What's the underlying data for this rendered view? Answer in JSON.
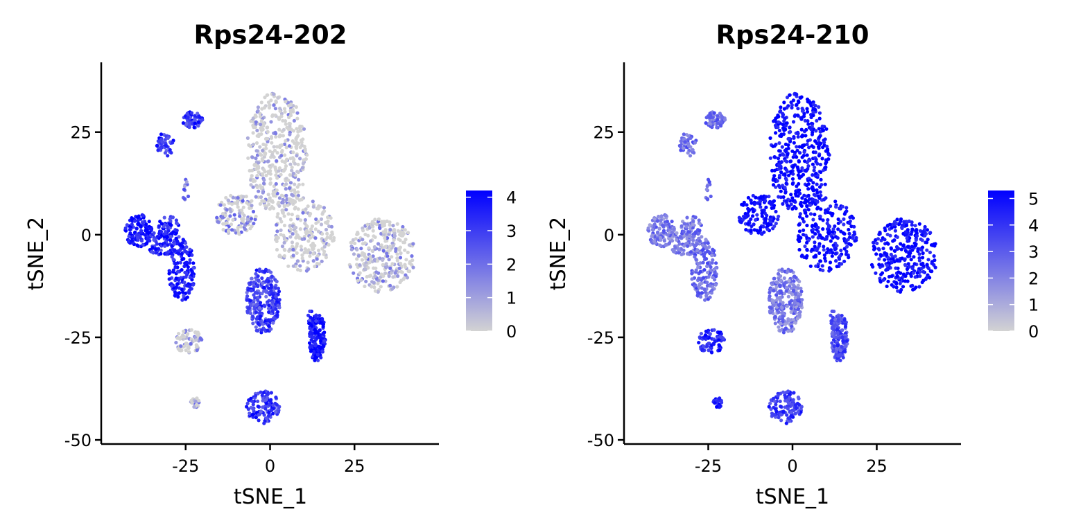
{
  "chart_data": [
    {
      "type": "scatter",
      "title": "Rps24-202",
      "xlabel": "tSNE_1",
      "ylabel": "tSNE_2",
      "xlim": [
        -50,
        50
      ],
      "ylim": [
        -51,
        42
      ],
      "xticks": [
        -25,
        0,
        25
      ],
      "yticks": [
        25,
        0,
        -25,
        -50
      ],
      "xtick_labels": [
        "-25",
        "0",
        "25"
      ],
      "ytick_labels": [
        "25",
        "0",
        "-25",
        "-50"
      ],
      "grid": false,
      "legend": "right",
      "colorscale": {
        "low": "#d3d3d3",
        "high": "#0000ff",
        "min": 0,
        "max": 4.2
      },
      "legend_ticks": [
        0,
        1,
        2,
        3,
        4
      ],
      "legend_tick_labels": [
        "0",
        "1",
        "2",
        "3",
        "4"
      ],
      "clusters": [
        {
          "cx": 2,
          "cy": 20,
          "rx": 9,
          "ry": 15,
          "n": 420,
          "level": 0.8
        },
        {
          "cx": 10,
          "cy": 0,
          "rx": 9,
          "ry": 9,
          "n": 220,
          "level": 0.8
        },
        {
          "cx": -10,
          "cy": 5,
          "rx": 6,
          "ry": 5,
          "n": 120,
          "level": 1.3
        },
        {
          "cx": 33,
          "cy": -5,
          "rx": 10,
          "ry": 9,
          "n": 300,
          "level": 1.0
        },
        {
          "cx": -39,
          "cy": 1,
          "rx": 4,
          "ry": 4,
          "n": 110,
          "level": 3.9
        },
        {
          "cx": -31,
          "cy": -2,
          "rx": 6,
          "ry": 3,
          "n": 90,
          "level": 3.5
        },
        {
          "cx": -26,
          "cy": -9,
          "rx": 4,
          "ry": 7,
          "n": 140,
          "level": 3.8
        },
        {
          "cx": -30,
          "cy": 2,
          "rx": 3,
          "ry": 2.5,
          "n": 45,
          "level": 3.5
        },
        {
          "cx": -23,
          "cy": 28,
          "rx": 3,
          "ry": 2,
          "n": 60,
          "level": 3.2
        },
        {
          "cx": -31,
          "cy": 22,
          "rx": 2.5,
          "ry": 3,
          "n": 45,
          "level": 3.2
        },
        {
          "cx": -25,
          "cy": 11,
          "rx": 1,
          "ry": 3,
          "n": 12,
          "level": 1.8
        },
        {
          "cx": -2,
          "cy": -16,
          "rx": 5,
          "ry": 8,
          "n": 260,
          "level": 2.9
        },
        {
          "cx": 14,
          "cy": -25,
          "rx": 2.5,
          "ry": 6,
          "n": 150,
          "level": 3.9
        },
        {
          "cx": -24,
          "cy": -26,
          "rx": 4,
          "ry": 3,
          "n": 70,
          "level": 1.0
        },
        {
          "cx": -22,
          "cy": -41,
          "rx": 1.5,
          "ry": 1.2,
          "n": 20,
          "level": 1.3
        },
        {
          "cx": -2,
          "cy": -42,
          "rx": 5,
          "ry": 4,
          "n": 120,
          "level": 3.2
        },
        {
          "cx": 12,
          "cy": -20,
          "rx": 1,
          "ry": 2,
          "n": 10,
          "level": 3.5
        }
      ]
    },
    {
      "type": "scatter",
      "title": "Rps24-210",
      "xlabel": "tSNE_1",
      "ylabel": "tSNE_2",
      "xlim": [
        -50,
        50
      ],
      "ylim": [
        -51,
        42
      ],
      "xticks": [
        -25,
        0,
        25
      ],
      "yticks": [
        25,
        0,
        -25,
        -50
      ],
      "xtick_labels": [
        "-25",
        "0",
        "25"
      ],
      "ytick_labels": [
        "25",
        "0",
        "-25",
        "-50"
      ],
      "grid": false,
      "legend": "right",
      "colorscale": {
        "low": "#d3d3d3",
        "high": "#0000ff",
        "min": 0,
        "max": 5.3
      },
      "legend_ticks": [
        0,
        1,
        2,
        3,
        4,
        5
      ],
      "legend_tick_labels": [
        "0",
        "1",
        "2",
        "3",
        "4",
        "5"
      ],
      "clusters": [
        {
          "cx": 2,
          "cy": 20,
          "rx": 9,
          "ry": 15,
          "n": 420,
          "level": 5.1
        },
        {
          "cx": 10,
          "cy": 0,
          "rx": 9,
          "ry": 9,
          "n": 220,
          "level": 5.0
        },
        {
          "cx": -10,
          "cy": 5,
          "rx": 6,
          "ry": 5,
          "n": 120,
          "level": 5.0
        },
        {
          "cx": 33,
          "cy": -5,
          "rx": 10,
          "ry": 9,
          "n": 300,
          "level": 5.0
        },
        {
          "cx": -39,
          "cy": 1,
          "rx": 4,
          "ry": 4,
          "n": 110,
          "level": 2.2
        },
        {
          "cx": -31,
          "cy": -2,
          "rx": 6,
          "ry": 3,
          "n": 90,
          "level": 2.3
        },
        {
          "cx": -26,
          "cy": -9,
          "rx": 4,
          "ry": 7,
          "n": 140,
          "level": 2.6
        },
        {
          "cx": -30,
          "cy": 2,
          "rx": 3,
          "ry": 2.5,
          "n": 45,
          "level": 2.3
        },
        {
          "cx": -23,
          "cy": 28,
          "rx": 3,
          "ry": 2,
          "n": 60,
          "level": 2.6
        },
        {
          "cx": -31,
          "cy": 22,
          "rx": 2.5,
          "ry": 3,
          "n": 45,
          "level": 2.6
        },
        {
          "cx": -25,
          "cy": 11,
          "rx": 1,
          "ry": 3,
          "n": 12,
          "level": 2.4
        },
        {
          "cx": -2,
          "cy": -16,
          "rx": 5,
          "ry": 8,
          "n": 260,
          "level": 2.2
        },
        {
          "cx": 14,
          "cy": -25,
          "rx": 2.5,
          "ry": 6,
          "n": 150,
          "level": 3.4
        },
        {
          "cx": -24,
          "cy": -26,
          "rx": 4,
          "ry": 3,
          "n": 70,
          "level": 4.4
        },
        {
          "cx": -22,
          "cy": -41,
          "rx": 1.5,
          "ry": 1.2,
          "n": 20,
          "level": 4.4
        },
        {
          "cx": -2,
          "cy": -42,
          "rx": 5,
          "ry": 4,
          "n": 120,
          "level": 3.9
        },
        {
          "cx": 12,
          "cy": -20,
          "rx": 1,
          "ry": 2,
          "n": 10,
          "level": 3.5
        }
      ]
    }
  ]
}
